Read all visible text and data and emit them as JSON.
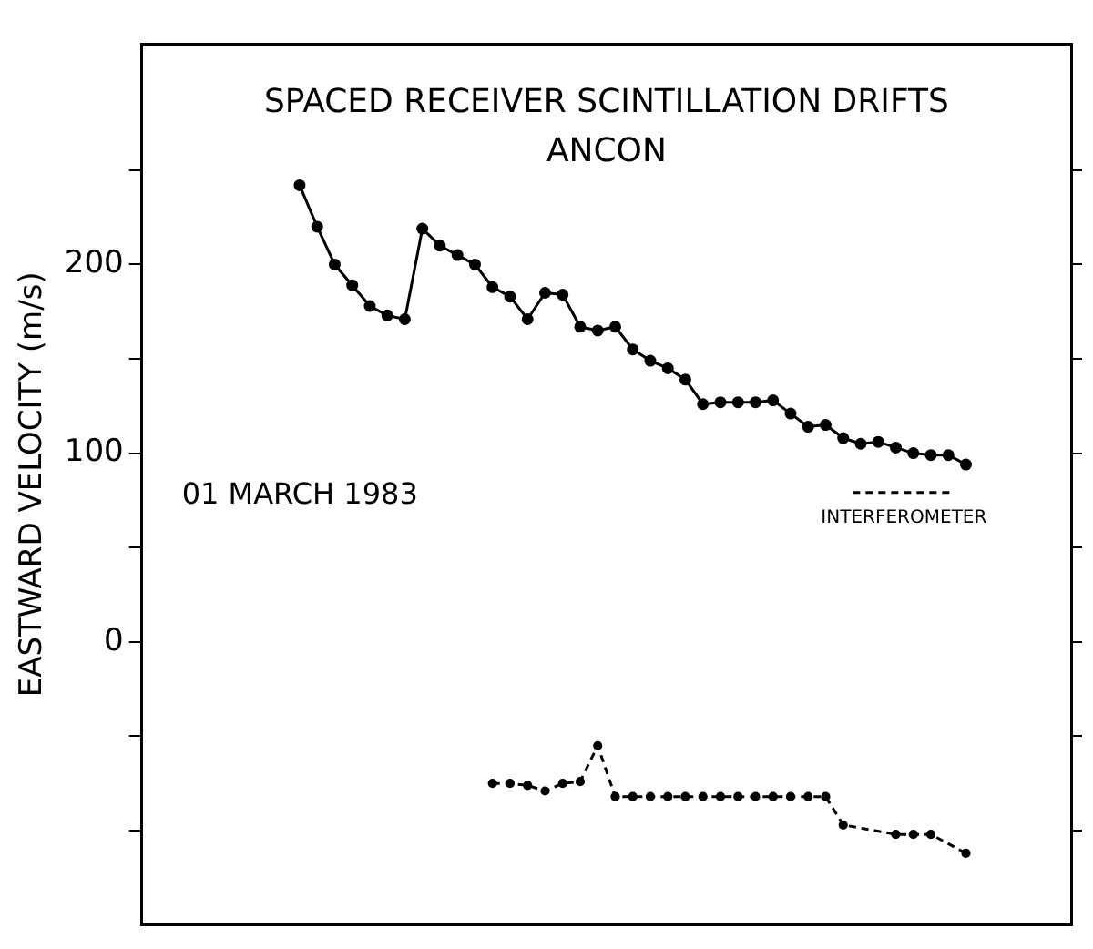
{
  "chart_data": {
    "type": "line",
    "title": "SPACED RECEIVER SCINTILLATION DRIFTS",
    "subtitle": "ANCON",
    "ylabel": "EASTWARD VELOCITY (m/s)",
    "annotations": [
      "01 MARCH 1983"
    ],
    "categories": [
      null,
      null,
      null,
      null,
      null,
      null,
      null,
      null,
      null,
      null,
      null,
      null,
      null,
      null,
      null,
      null,
      null,
      null,
      null,
      null,
      null,
      null,
      null,
      null,
      null,
      null,
      null,
      null,
      null,
      null,
      null,
      null,
      null,
      null,
      null,
      null,
      null,
      null,
      null,
      null,
      null,
      null,
      null,
      null,
      null,
      null,
      null,
      null,
      null,
      null,
      null,
      null,
      null,
      null
    ],
    "series": [
      {
        "color": "#000000",
        "marker": "circle",
        "line_style": "solid",
        "values": [
          null,
          null,
          null,
          null,
          null,
          null,
          null,
          null,
          null,
          242,
          220,
          200,
          189,
          178,
          173,
          171,
          219,
          210,
          205,
          200,
          188,
          183,
          171,
          185,
          184,
          167,
          165,
          167,
          155,
          149,
          145,
          139,
          126,
          127,
          127,
          127,
          128,
          121,
          114,
          115,
          108,
          105,
          106,
          103,
          100,
          99,
          99,
          94,
          null,
          null,
          null,
          null,
          null,
          null
        ]
      },
      {
        "name": "INTERFEROMETER",
        "color": "#000000",
        "marker": "circle",
        "line_style": "dashed",
        "values": [
          null,
          null,
          null,
          null,
          null,
          null,
          null,
          null,
          null,
          null,
          null,
          null,
          null,
          null,
          null,
          null,
          null,
          null,
          null,
          null,
          -75,
          -75,
          -76,
          -79,
          -75,
          -74,
          -55,
          -82,
          -82,
          -82,
          -82,
          -82,
          -82,
          -82,
          -82,
          -82,
          -82,
          -82,
          -82,
          -82,
          -97,
          null,
          null,
          -102,
          -102,
          -102,
          null,
          -112,
          null,
          null,
          null,
          null,
          null,
          null
        ]
      }
    ],
    "ylim": [
      -150,
      317
    ],
    "yticks": [
      {
        "value": -100,
        "label": null
      },
      {
        "value": -50,
        "label": null
      },
      0,
      {
        "value": 50,
        "label": null
      },
      100,
      {
        "value": 150,
        "label": null
      },
      200,
      {
        "value": 250,
        "label": null
      }
    ],
    "grid": false,
    "legend": "right",
    "tick_labels": "y"
  }
}
